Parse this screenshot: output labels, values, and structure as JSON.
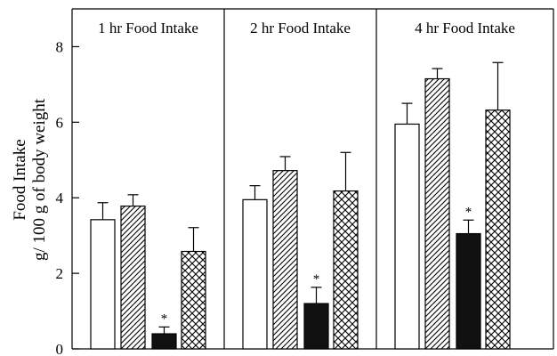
{
  "chart_data": {
    "type": "bar",
    "ylabel_line1": "Food Intake",
    "ylabel_line2": "g/ 100 g of body weight",
    "ylim": [
      0,
      9
    ],
    "yticks": [
      0,
      2,
      4,
      6,
      8
    ],
    "grid": false,
    "panels": [
      {
        "title": "1 hr Food Intake",
        "bars": [
          {
            "pattern": "open",
            "value": 3.42,
            "error": 0.45,
            "significant": false
          },
          {
            "pattern": "diagonal",
            "value": 3.78,
            "error": 0.3,
            "significant": false
          },
          {
            "pattern": "solid",
            "value": 0.4,
            "error": 0.18,
            "significant": true
          },
          {
            "pattern": "crosshatch",
            "value": 2.58,
            "error": 0.63,
            "significant": false
          }
        ]
      },
      {
        "title": "2 hr Food Intake",
        "bars": [
          {
            "pattern": "open",
            "value": 3.95,
            "error": 0.37,
            "significant": false
          },
          {
            "pattern": "diagonal",
            "value": 4.72,
            "error": 0.37,
            "significant": false
          },
          {
            "pattern": "solid",
            "value": 1.2,
            "error": 0.43,
            "significant": true
          },
          {
            "pattern": "crosshatch",
            "value": 4.18,
            "error": 1.02,
            "significant": false
          }
        ]
      },
      {
        "title": "4 hr Food Intake",
        "bars": [
          {
            "pattern": "open",
            "value": 5.95,
            "error": 0.55,
            "significant": false
          },
          {
            "pattern": "diagonal",
            "value": 7.15,
            "error": 0.27,
            "significant": false
          },
          {
            "pattern": "solid",
            "value": 3.05,
            "error": 0.36,
            "significant": true
          },
          {
            "pattern": "crosshatch",
            "value": 6.32,
            "error": 1.26,
            "significant": false
          }
        ]
      }
    ],
    "significance_marker": "*"
  }
}
